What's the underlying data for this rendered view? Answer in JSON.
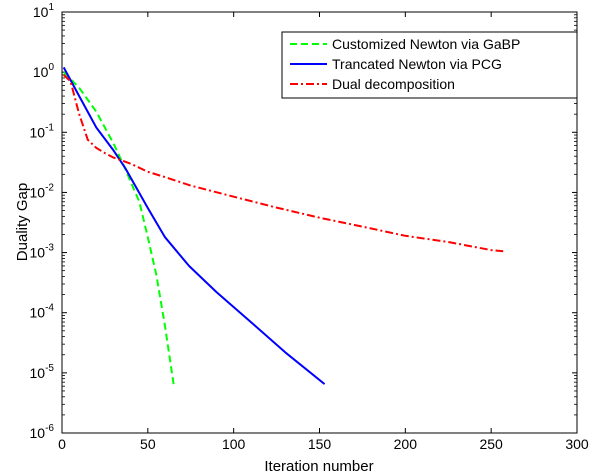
{
  "chart_data": {
    "type": "line",
    "title": "",
    "xlabel": "Iteration number",
    "ylabel": "Duality Gap",
    "xlim": [
      0,
      300
    ],
    "ylim": [
      1e-06,
      10
    ],
    "yscale": "log",
    "xticks": [
      0,
      50,
      100,
      150,
      200,
      250,
      300
    ],
    "yticks": [
      1e-06,
      1e-05,
      0.0001,
      0.001,
      0.01,
      0.1,
      1.0,
      10.0
    ],
    "ytick_base": "10",
    "ytick_exponents": [
      "-6",
      "-5",
      "-4",
      "-3",
      "-2",
      "-1",
      "0",
      "1"
    ],
    "grid": false,
    "legend_position": "top-right",
    "series": [
      {
        "name": "Customized Newton via GaBP",
        "color": "#00ff00",
        "dash": "dashed",
        "x": [
          1,
          10,
          20,
          30,
          36,
          40,
          45,
          50,
          55,
          60,
          65
        ],
        "y": [
          1.0,
          0.55,
          0.22,
          0.065,
          0.028,
          0.015,
          0.007,
          0.0018,
          0.00042,
          6e-05,
          6.5e-06
        ]
      },
      {
        "name": "Trancated Newton via PCG",
        "color": "#0000ff",
        "dash": "solid",
        "x": [
          1,
          10,
          20,
          30,
          37,
          50,
          60,
          74,
          90,
          110,
          130,
          153
        ],
        "y": [
          1.2,
          0.4,
          0.12,
          0.05,
          0.025,
          0.0055,
          0.0018,
          0.0006,
          0.00022,
          7e-05,
          2.2e-05,
          6.5e-06
        ]
      },
      {
        "name": "Dual decomposition",
        "color": "#ff0000",
        "dash": "dashdot",
        "x": [
          1,
          5,
          10,
          15,
          20,
          25,
          30,
          40,
          50,
          60,
          75,
          100,
          125,
          150,
          175,
          200,
          225,
          250,
          257
        ],
        "y": [
          0.9,
          0.7,
          0.2,
          0.075,
          0.055,
          0.045,
          0.038,
          0.03,
          0.022,
          0.018,
          0.013,
          0.0085,
          0.0056,
          0.0038,
          0.0027,
          0.0019,
          0.0015,
          0.0011,
          0.00105
        ]
      }
    ]
  }
}
